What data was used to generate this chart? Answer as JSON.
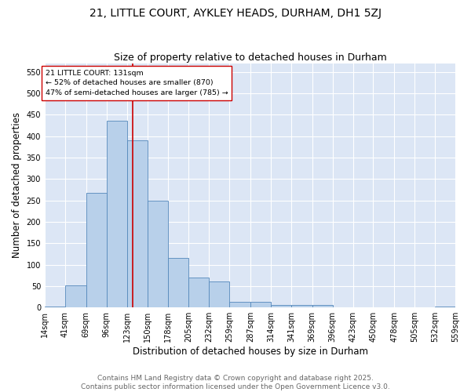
{
  "title": "21, LITTLE COURT, AYKLEY HEADS, DURHAM, DH1 5ZJ",
  "subtitle": "Size of property relative to detached houses in Durham",
  "xlabel": "Distribution of detached houses by size in Durham",
  "ylabel": "Number of detached properties",
  "bins": [
    14,
    41,
    69,
    96,
    123,
    150,
    178,
    205,
    232,
    259,
    287,
    314,
    341,
    369,
    396,
    423,
    450,
    478,
    505,
    532,
    559
  ],
  "bar_heights": [
    3,
    51,
    267,
    435,
    390,
    250,
    116,
    70,
    61,
    13,
    13,
    5,
    6,
    5,
    0,
    1,
    0,
    0,
    0,
    2
  ],
  "bar_color": "#b8d0ea",
  "bar_edge_color": "#5588bb",
  "vline_x": 131,
  "vline_color": "#cc0000",
  "annotation_text": "21 LITTLE COURT: 131sqm\n← 52% of detached houses are smaller (870)\n47% of semi-detached houses are larger (785) →",
  "annotation_box_color": "#ffffff",
  "annotation_box_edge": "#cc0000",
  "ylim": [
    0,
    570
  ],
  "yticks": [
    0,
    50,
    100,
    150,
    200,
    250,
    300,
    350,
    400,
    450,
    500,
    550
  ],
  "background_color": "#dce6f5",
  "grid_color": "#ffffff",
  "footer_line1": "Contains HM Land Registry data © Crown copyright and database right 2025.",
  "footer_line2": "Contains public sector information licensed under the Open Government Licence v3.0.",
  "title_fontsize": 10,
  "subtitle_fontsize": 9,
  "tick_fontsize": 7,
  "label_fontsize": 8.5,
  "footer_fontsize": 6.5
}
